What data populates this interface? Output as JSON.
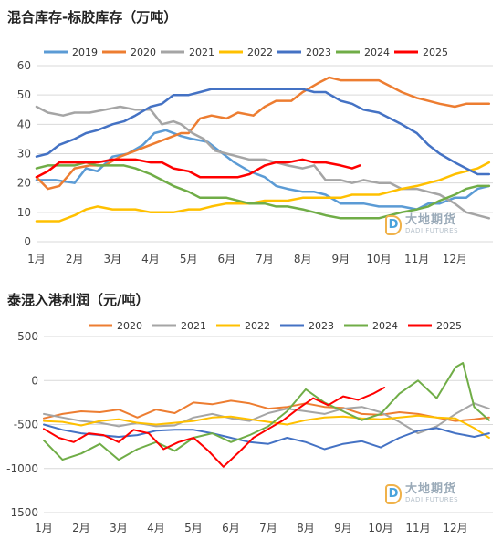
{
  "charts": [
    {
      "title": "混合库存-标胶库存（万吨）",
      "type": "line",
      "months": [
        "1月",
        "2月",
        "3月",
        "4月",
        "5月",
        "6月",
        "7月",
        "8月",
        "9月",
        "10月",
        "11月",
        "12月"
      ],
      "ylim": [
        0,
        60
      ],
      "yticks": [
        0,
        10,
        20,
        30,
        40,
        50,
        60
      ],
      "legend_position": "top",
      "grid": true,
      "series": [
        {
          "name": "2019",
          "color": "#5b9bd5",
          "x": [
            0,
            0.5,
            1,
            1.3,
            1.6,
            2,
            2.4,
            2.8,
            3.1,
            3.4,
            3.8,
            4.1,
            4.5,
            4.9,
            5.2,
            5.6,
            6,
            6.3,
            6.6,
            7,
            7.3,
            7.6,
            8,
            8.3,
            8.6,
            9,
            9.3,
            9.6,
            10,
            10.3,
            10.6,
            11,
            11.3,
            11.6,
            11.9
          ],
          "values": [
            21,
            21,
            20,
            25,
            24,
            29,
            30,
            33,
            37,
            38,
            36,
            35,
            34,
            30,
            27,
            24,
            22,
            19,
            18,
            17,
            17,
            16,
            13,
            13,
            13,
            12,
            12,
            12,
            11,
            13,
            13,
            15,
            15,
            18,
            19
          ]
        },
        {
          "name": "2020",
          "color": "#ed7d31",
          "x": [
            0,
            0.3,
            0.6,
            1,
            1.4,
            1.8,
            2.2,
            2.6,
            3,
            3.4,
            3.8,
            4,
            4.3,
            4.6,
            5,
            5.3,
            5.7,
            6,
            6.3,
            6.7,
            7,
            7.4,
            7.7,
            8,
            8.3,
            8.6,
            9,
            9.3,
            9.6,
            10,
            10.3,
            10.6,
            11,
            11.3,
            11.6,
            11.9
          ],
          "values": [
            22,
            18,
            19,
            25,
            26,
            26,
            29,
            31,
            33,
            35,
            37,
            37,
            42,
            43,
            42,
            44,
            43,
            46,
            48,
            48,
            51,
            54,
            56,
            55,
            55,
            55,
            55,
            53,
            51,
            49,
            48,
            47,
            46,
            47,
            47,
            47
          ]
        },
        {
          "name": "2021",
          "color": "#a5a5a5",
          "x": [
            0,
            0.3,
            0.7,
            1,
            1.4,
            1.8,
            2.2,
            2.6,
            3,
            3.3,
            3.6,
            3.8,
            4.1,
            4.4,
            4.7,
            5,
            5.3,
            5.6,
            6,
            6.3,
            6.6,
            7,
            7.3,
            7.6,
            8,
            8.3,
            8.6,
            9,
            9.3,
            9.6,
            10,
            10.3,
            10.6,
            11,
            11.3,
            11.6,
            11.9
          ],
          "values": [
            46,
            44,
            43,
            44,
            44,
            45,
            46,
            45,
            45,
            40,
            41,
            40,
            37,
            35,
            31,
            30,
            29,
            28,
            28,
            27,
            26,
            25,
            26,
            21,
            21,
            20,
            21,
            20,
            20,
            18,
            18,
            17,
            16,
            13,
            10,
            9,
            8
          ]
        },
        {
          "name": "2022",
          "color": "#ffc000",
          "x": [
            0,
            0.3,
            0.6,
            1,
            1.3,
            1.6,
            2,
            2.3,
            2.6,
            3,
            3.3,
            3.6,
            4,
            4.3,
            4.6,
            5,
            5.3,
            5.6,
            6,
            6.3,
            6.6,
            7,
            7.3,
            7.6,
            8,
            8.3,
            8.6,
            9,
            9.3,
            9.6,
            10,
            10.3,
            10.6,
            11,
            11.3,
            11.6,
            11.9
          ],
          "values": [
            7,
            7,
            7,
            9,
            11,
            12,
            11,
            11,
            11,
            10,
            10,
            10,
            11,
            11,
            12,
            13,
            13,
            13,
            14,
            14,
            14,
            15,
            15,
            15,
            15,
            16,
            16,
            16,
            17,
            18,
            19,
            20,
            21,
            23,
            24,
            25,
            27
          ]
        },
        {
          "name": "2023",
          "color": "#4472c4",
          "x": [
            0,
            0.3,
            0.6,
            1,
            1.3,
            1.6,
            2,
            2.3,
            2.6,
            3,
            3.3,
            3.6,
            4,
            4.3,
            4.6,
            5,
            5.3,
            5.6,
            6,
            6.3,
            6.6,
            7,
            7.3,
            7.6,
            8,
            8.3,
            8.6,
            9,
            9.3,
            9.6,
            10,
            10.3,
            10.6,
            11,
            11.3,
            11.6,
            11.9
          ],
          "values": [
            29,
            30,
            33,
            35,
            37,
            38,
            40,
            41,
            43,
            46,
            47,
            50,
            50,
            51,
            52,
            52,
            52,
            52,
            52,
            52,
            52,
            52,
            51,
            51,
            48,
            47,
            45,
            44,
            42,
            40,
            37,
            33,
            30,
            27,
            25,
            23,
            23
          ]
        },
        {
          "name": "2024",
          "color": "#70ad47",
          "x": [
            0,
            0.3,
            0.6,
            1,
            1.3,
            1.6,
            2,
            2.3,
            2.6,
            3,
            3.3,
            3.6,
            4,
            4.3,
            4.6,
            5,
            5.3,
            5.6,
            6,
            6.3,
            6.6,
            7,
            7.3,
            7.6,
            8,
            8.3,
            8.6,
            9,
            9.3,
            9.6,
            10,
            10.3,
            10.6,
            11,
            11.3,
            11.6,
            11.9
          ],
          "values": [
            25,
            26,
            26,
            26,
            27,
            26,
            26,
            26,
            25,
            23,
            21,
            19,
            17,
            15,
            15,
            15,
            14,
            13,
            13,
            12,
            12,
            11,
            10,
            9,
            8,
            8,
            8,
            8,
            9,
            10,
            11,
            12,
            14,
            16,
            18,
            19,
            19
          ]
        },
        {
          "name": "2025",
          "color": "#ff0000",
          "x": [
            0,
            0.3,
            0.6,
            1,
            1.3,
            1.6,
            2,
            2.3,
            2.6,
            3,
            3.3,
            3.6,
            4,
            4.3,
            4.6,
            5,
            5.3,
            5.6,
            6,
            6.3,
            6.6,
            7,
            7.3,
            7.6,
            8,
            8.3,
            8.5
          ],
          "values": [
            22,
            24,
            27,
            27,
            27,
            27,
            28,
            28,
            28,
            27,
            27,
            25,
            24,
            22,
            22,
            22,
            22,
            23,
            26,
            27,
            27,
            28,
            27,
            27,
            26,
            25,
            26
          ]
        }
      ]
    },
    {
      "title": "泰混入港利润（元/吨）",
      "type": "line",
      "months": [
        "1月",
        "2月",
        "3月",
        "4月",
        "5月",
        "6月",
        "7月",
        "8月",
        "9月",
        "10月",
        "11月",
        "12月"
      ],
      "ylim": [
        -1500,
        500
      ],
      "yticks": [
        -1500,
        -1000,
        -500,
        0,
        500
      ],
      "legend_position": "top",
      "grid": true,
      "series": [
        {
          "name": "2020",
          "color": "#ed7d31",
          "x": [
            0,
            0.5,
            1,
            1.5,
            2,
            2.5,
            3,
            3.5,
            4,
            4.5,
            5,
            5.5,
            6,
            6.5,
            7,
            7.5,
            8,
            8.5,
            9,
            9.5,
            10,
            10.5,
            11,
            11.5,
            11.9
          ],
          "values": [
            -430,
            -380,
            -350,
            -360,
            -330,
            -420,
            -330,
            -370,
            -250,
            -270,
            -230,
            -260,
            -320,
            -300,
            -260,
            -300,
            -310,
            -380,
            -390,
            -360,
            -380,
            -420,
            -460,
            -440,
            -420
          ]
        },
        {
          "name": "2021",
          "color": "#a5a5a5",
          "x": [
            0,
            0.5,
            1,
            1.5,
            2,
            2.5,
            3,
            3.5,
            4,
            4.5,
            5,
            5.5,
            6,
            6.5,
            7,
            7.5,
            8,
            8.5,
            9,
            9.5,
            10,
            10.5,
            11,
            11.5,
            11.9
          ],
          "values": [
            -380,
            -420,
            -460,
            -480,
            -520,
            -480,
            -520,
            -510,
            -420,
            -380,
            -430,
            -460,
            -370,
            -320,
            -350,
            -380,
            -320,
            -300,
            -360,
            -470,
            -600,
            -520,
            -380,
            -260,
            -320
          ]
        },
        {
          "name": "2022",
          "color": "#ffc000",
          "x": [
            0,
            0.5,
            1,
            1.5,
            2,
            2.5,
            3,
            3.5,
            4,
            4.5,
            5,
            5.5,
            6,
            6.5,
            7,
            7.5,
            8,
            8.5,
            9,
            9.5,
            10,
            10.5,
            11,
            11.5,
            11.9
          ],
          "values": [
            -460,
            -470,
            -510,
            -460,
            -440,
            -480,
            -500,
            -480,
            -460,
            -420,
            -410,
            -440,
            -470,
            -500,
            -450,
            -420,
            -410,
            -430,
            -440,
            -420,
            -400,
            -420,
            -430,
            -540,
            -650
          ]
        },
        {
          "name": "2023",
          "color": "#4472c4",
          "x": [
            0,
            0.5,
            1,
            1.5,
            2,
            2.5,
            3,
            3.5,
            4,
            4.5,
            5,
            5.5,
            6,
            6.5,
            7,
            7.5,
            8,
            8.5,
            9,
            9.5,
            10,
            10.5,
            11,
            11.5,
            11.9
          ],
          "values": [
            -500,
            -560,
            -600,
            -620,
            -640,
            -620,
            -570,
            -560,
            -560,
            -600,
            -650,
            -700,
            -720,
            -650,
            -700,
            -780,
            -720,
            -690,
            -760,
            -650,
            -570,
            -540,
            -600,
            -640,
            -600
          ]
        },
        {
          "name": "2024",
          "color": "#70ad47",
          "x": [
            0,
            0.5,
            1,
            1.5,
            2,
            2.5,
            3,
            3.5,
            4,
            4.5,
            5,
            5.5,
            6,
            6.5,
            7,
            7.5,
            8,
            8.5,
            9,
            9.5,
            10,
            10.5,
            11,
            11.2,
            11.5,
            11.9
          ],
          "values": [
            -680,
            -900,
            -830,
            -720,
            -900,
            -780,
            -700,
            -800,
            -650,
            -600,
            -700,
            -620,
            -520,
            -350,
            -100,
            -250,
            -350,
            -450,
            -380,
            -150,
            0,
            -200,
            150,
            200,
            -300,
            -450
          ]
        },
        {
          "name": "2025",
          "color": "#ff0000",
          "x": [
            0,
            0.4,
            0.8,
            1.2,
            1.6,
            2,
            2.4,
            2.8,
            3.2,
            3.6,
            4,
            4.4,
            4.8,
            5.2,
            5.6,
            6,
            6.4,
            6.8,
            7.2,
            7.6,
            8,
            8.4,
            8.8,
            9.1
          ],
          "values": [
            -550,
            -650,
            -700,
            -600,
            -620,
            -700,
            -560,
            -600,
            -780,
            -700,
            -650,
            -800,
            -980,
            -820,
            -650,
            -550,
            -450,
            -320,
            -200,
            -280,
            -180,
            -220,
            -150,
            -80
          ]
        }
      ]
    }
  ],
  "watermark": {
    "cn": "大地期货",
    "en": "DADI FUTURES",
    "logo": "D"
  }
}
